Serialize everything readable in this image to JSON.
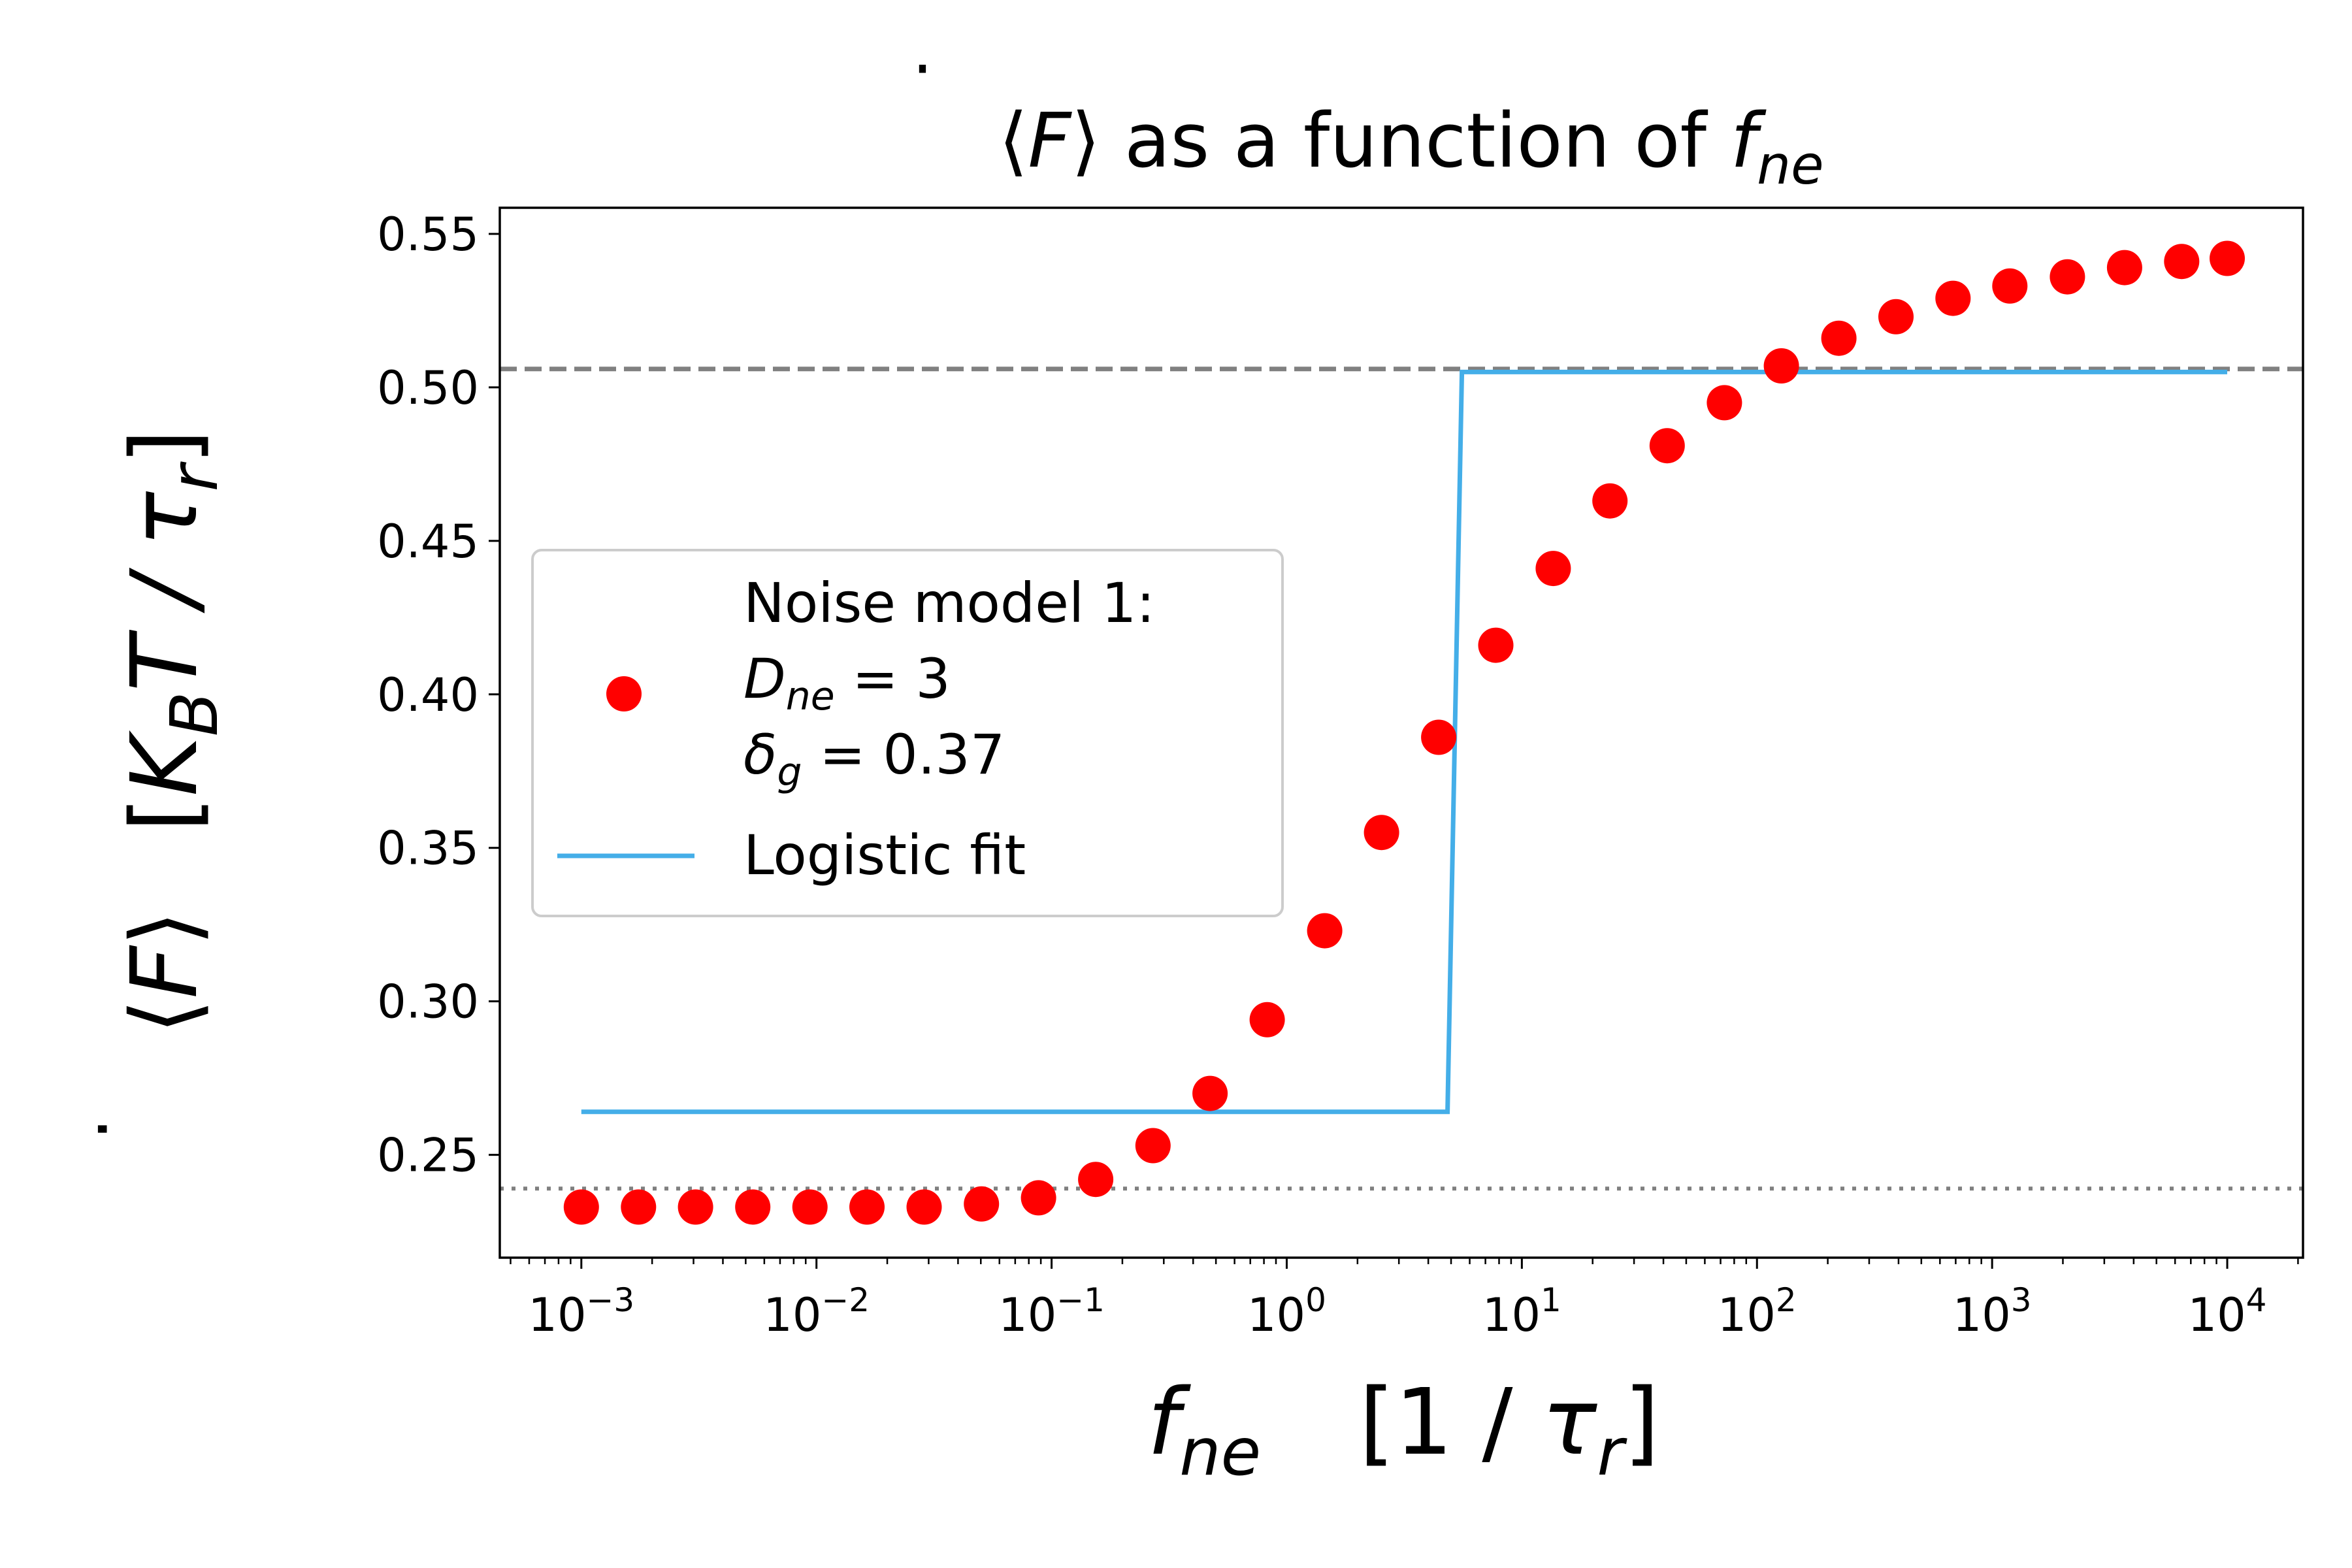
{
  "chart_data": {
    "type": "scatter",
    "title": {
      "pre": "⟨",
      "sym": "F",
      "mid": "⟩ as a function of ",
      "var": "f",
      "sub": "ne"
    },
    "xlabel": {
      "var": "f",
      "sub": "ne",
      "unit_open": "[1 / ",
      "unit_var": "τ",
      "unit_sub": "r",
      "unit_close": "]"
    },
    "ylabel": {
      "pre": "⟨",
      "sym": "F",
      "mid": "⟩",
      "unit_open": "[",
      "k": "K",
      "k_sub": "B",
      "rest": "T / ",
      "tau": "τ",
      "tau_sub": "r",
      "unit_close": "]"
    },
    "xscale": "log",
    "xlim": [
      0.00045,
      21000
    ],
    "ylim": [
      0.2165,
      0.5585
    ],
    "x_ticks": [
      {
        "base": "10",
        "exp": "−3",
        "value": 0.001
      },
      {
        "base": "10",
        "exp": "−2",
        "value": 0.01
      },
      {
        "base": "10",
        "exp": "−1",
        "value": 0.1
      },
      {
        "base": "10",
        "exp": "0",
        "value": 1
      },
      {
        "base": "10",
        "exp": "1",
        "value": 10
      },
      {
        "base": "10",
        "exp": "2",
        "value": 100
      },
      {
        "base": "10",
        "exp": "3",
        "value": 1000
      },
      {
        "base": "10",
        "exp": "4",
        "value": 10000
      }
    ],
    "y_ticks": [
      "0.25",
      "0.30",
      "0.35",
      "0.40",
      "0.45",
      "0.50",
      "0.55"
    ],
    "series": [
      {
        "kind": "scatter",
        "color": "#ff0000",
        "x": [
          0.001,
          0.00175,
          0.00306,
          0.00536,
          0.00938,
          0.0164,
          0.0287,
          0.0503,
          0.088,
          0.154,
          0.27,
          0.472,
          0.826,
          1.45,
          2.53,
          4.43,
          7.75,
          13.6,
          23.7,
          41.5,
          72.7,
          127,
          223,
          390,
          682,
          1190,
          2090,
          3660,
          6400,
          10000
        ],
        "y": [
          0.233,
          0.233,
          0.233,
          0.233,
          0.233,
          0.233,
          0.233,
          0.234,
          0.236,
          0.242,
          0.253,
          0.27,
          0.294,
          0.323,
          0.355,
          0.386,
          0.416,
          0.441,
          0.463,
          0.481,
          0.495,
          0.507,
          0.516,
          0.523,
          0.529,
          0.533,
          0.536,
          0.539,
          0.541,
          0.542
        ]
      },
      {
        "kind": "line",
        "color": "#44aee8",
        "x": [
          0.001,
          4.83,
          5.56,
          10000
        ],
        "y": [
          0.264,
          0.264,
          0.505,
          0.505
        ]
      }
    ],
    "hlines": [
      {
        "y": 0.506,
        "style": "dashed",
        "color": "#808080"
      },
      {
        "y": 0.239,
        "style": "dotted",
        "color": "#808080"
      }
    ],
    "legend": {
      "placement": "center-left",
      "entries": [
        {
          "kind": "marker",
          "color": "#ff0000",
          "lines": [
            {
              "text": "Noise model 1:"
            },
            {
              "var": "D",
              "sub": "ne",
              "rest": " = 3"
            },
            {
              "var": "δ",
              "sub": "g",
              "rest": " = 0.37"
            }
          ]
        },
        {
          "kind": "line",
          "color": "#44aee8",
          "label": "Logistic fit"
        }
      ]
    }
  }
}
